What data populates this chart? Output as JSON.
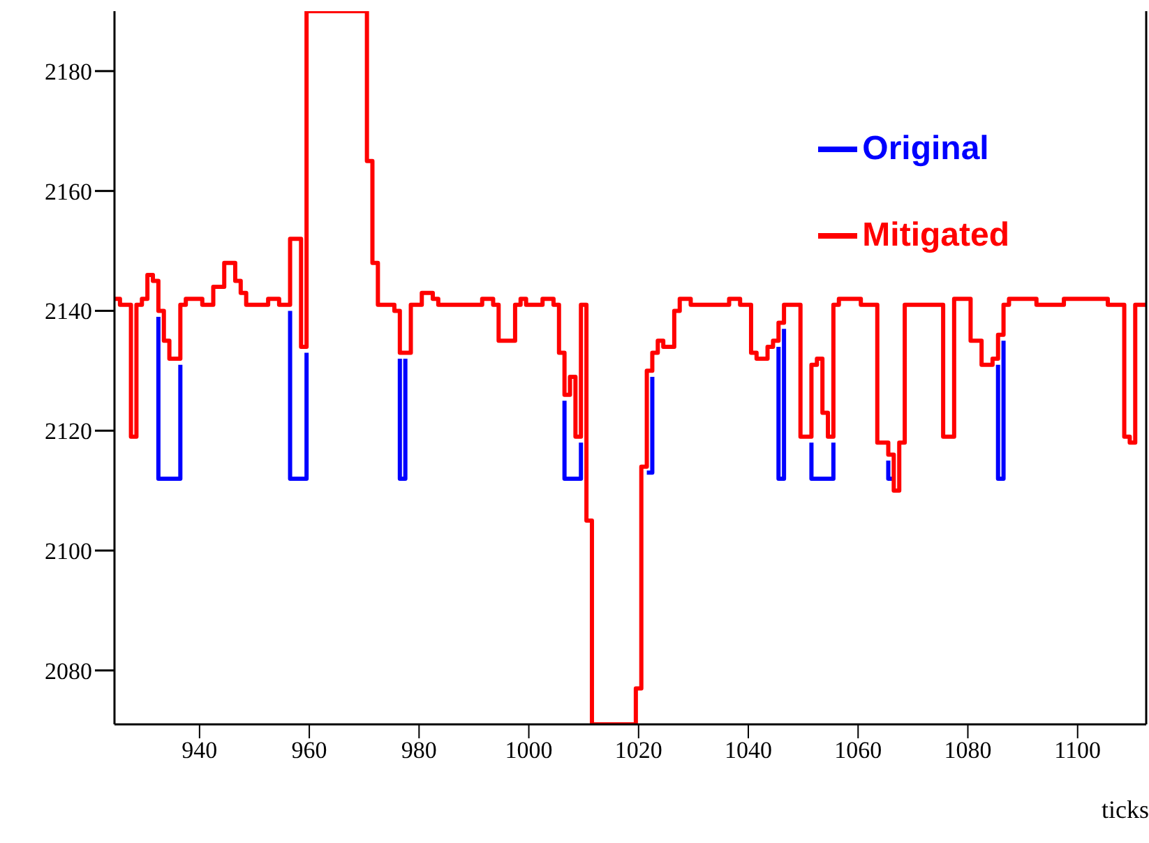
{
  "chart_data": {
    "type": "step",
    "xlabel": "ticks",
    "xlim": [
      924.5,
      1112.5
    ],
    "xticks": [
      940,
      960,
      980,
      1000,
      1020,
      1040,
      1060,
      1080,
      1100
    ],
    "ylim": [
      2071,
      2190
    ],
    "yticks": [
      2080,
      2100,
      2120,
      2140,
      2160,
      2180
    ],
    "grid": false,
    "legend": "top right",
    "line_style": "solid",
    "marker": "none",
    "series": [
      {
        "name": "Original",
        "color": "#0000ff",
        "x": [
          932.5,
          932.5,
          936.5,
          936.5,
          946,
          956.5,
          956.5,
          959.5,
          959.5,
          968,
          976.5,
          976.5,
          977.5,
          977.5,
          990,
          1006.5,
          1006.5,
          1009.5,
          1009.5,
          1015,
          1021.5,
          1022.5,
          1022.5,
          1030,
          1045.5,
          1045.5,
          1046.5,
          1046.5,
          1049,
          1051.5,
          1051.5,
          1055.5,
          1055.5,
          1060,
          1065.5,
          1065.5,
          1066.5,
          1075,
          1085.5,
          1085.5,
          1086.5,
          1086.5
        ],
        "values": [
          2139,
          2112,
          2112,
          2131,
          null,
          2140,
          2112,
          2112,
          2133,
          null,
          2132,
          2112,
          2112,
          2132,
          null,
          2125,
          2112,
          2112,
          2118,
          null,
          2113,
          2113,
          2129,
          null,
          2134,
          2112,
          2112,
          2137,
          null,
          2118,
          2112,
          2112,
          2118,
          null,
          2115,
          2112,
          2112,
          null,
          2131,
          2112,
          2112,
          2135
        ]
      },
      {
        "name": "Mitigated",
        "color": "#ff0000",
        "x": [
          924.5,
          925.5,
          927.5,
          928.5,
          929.5,
          930.5,
          931.5,
          932.5,
          933.5,
          934.5,
          936.5,
          937.5,
          940.5,
          942.5,
          944.5,
          946.5,
          947.5,
          948.5,
          952.5,
          954.5,
          956.5,
          958.5,
          959.5,
          970.5,
          971.5,
          972.5,
          975.5,
          976.5,
          978.5,
          980.5,
          982.5,
          983.5,
          991.5,
          993.5,
          994.5,
          997.5,
          998.5,
          999.5,
          1002.5,
          1004.5,
          1005.5,
          1006.5,
          1007.5,
          1008.5,
          1009.5,
          1010.5,
          1011.5,
          1019.5,
          1020.5,
          1021.5,
          1022.5,
          1023.5,
          1024.5,
          1026.5,
          1027.5,
          1029.5,
          1036.5,
          1038.5,
          1040.5,
          1041.5,
          1043.5,
          1044.5,
          1045.5,
          1046.5,
          1049.5,
          1051.5,
          1052.5,
          1053.5,
          1054.5,
          1055.5,
          1056.5,
          1060.5,
          1063.5,
          1065.5,
          1066.5,
          1067.5,
          1068.5,
          1075.5,
          1077.5,
          1080.5,
          1082.5,
          1084.5,
          1085.5,
          1086.5,
          1087.5,
          1092.5,
          1097.5,
          1105.5,
          1108.5,
          1109.5,
          1110.5,
          1112.5
        ],
        "values": [
          2142,
          2141,
          2119,
          2141,
          2142,
          2146,
          2145,
          2140,
          2135,
          2132,
          2141,
          2142,
          2141,
          2144,
          2148,
          2145,
          2143,
          2141,
          2142,
          2141,
          2152,
          2134,
          2190,
          2165,
          2148,
          2141,
          2140,
          2133,
          2141,
          2143,
          2142,
          2141,
          2142,
          2141,
          2135,
          2141,
          2142,
          2141,
          2142,
          2141,
          2133,
          2126,
          2129,
          2119,
          2141,
          2105,
          2071,
          2077,
          2114,
          2130,
          2133,
          2135,
          2134,
          2140,
          2142,
          2141,
          2142,
          2141,
          2133,
          2132,
          2134,
          2135,
          2138,
          2141,
          2119,
          2131,
          2132,
          2123,
          2119,
          2141,
          2142,
          2141,
          2118,
          2116,
          2110,
          2118,
          2141,
          2119,
          2142,
          2135,
          2131,
          2132,
          2136,
          2141,
          2142,
          2141,
          2142,
          2141,
          2119,
          2118,
          2141,
          2141
        ]
      }
    ]
  }
}
